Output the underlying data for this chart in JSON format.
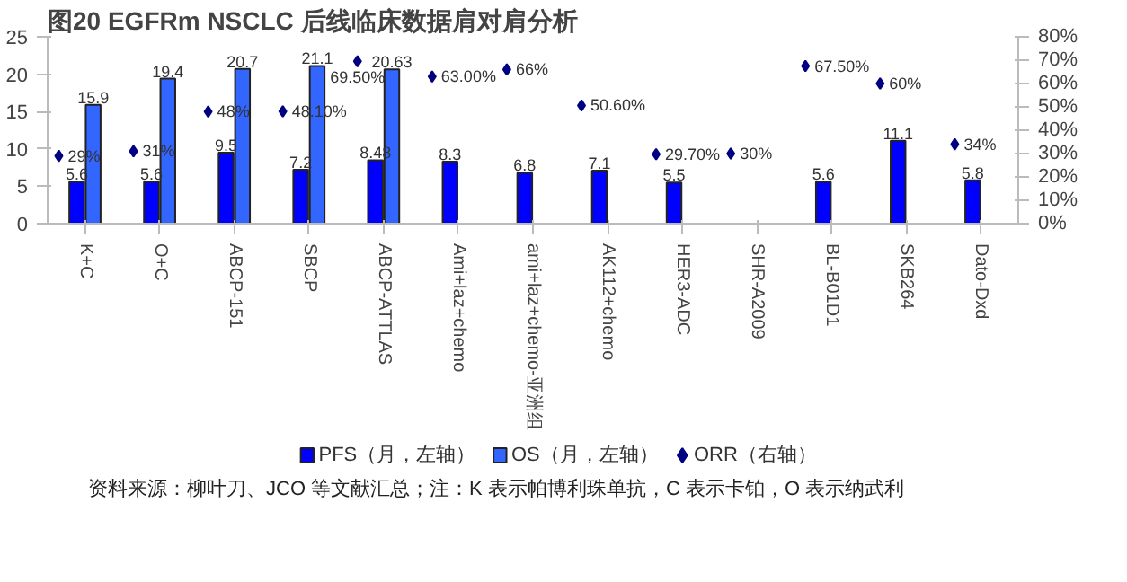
{
  "chart_data": {
    "type": "bar",
    "title": "图20 EGFRm NSCLC 后线临床数据肩对肩分析",
    "categories": [
      "K+C",
      "O+C",
      "ABCP-151",
      "SBCP",
      "ABCP-ATTLAS",
      "Ami+laz+chemo",
      "ami+laz+chemo-亚洲组",
      "AK112+chemo",
      "HER3-ADC",
      "SHR-A2009",
      "BL-B01D1",
      "SKB264",
      "Dato-Dxd"
    ],
    "series": [
      {
        "name": "PFS（月，左轴）",
        "color": "#0000ff",
        "values": [
          5.6,
          5.6,
          9.5,
          7.2,
          8.48,
          8.3,
          6.8,
          7.1,
          5.5,
          null,
          5.6,
          11.1,
          5.8
        ]
      },
      {
        "name": "OS（月，左轴）",
        "color": "#3366ff",
        "values": [
          15.9,
          19.4,
          20.7,
          21.1,
          20.63,
          null,
          null,
          null,
          null,
          null,
          null,
          null,
          null
        ]
      },
      {
        "name": "ORR（右轴）",
        "type": "scatter",
        "axis": "y2",
        "marker": "diamond",
        "color": "#000080",
        "values": [
          29,
          31,
          48,
          48.1,
          69.5,
          63,
          66,
          50.6,
          29.7,
          30,
          67.5,
          60,
          34
        ],
        "value_labels": [
          "29%",
          "31%",
          "48%",
          "48.10%",
          "69.50%",
          "63.00%",
          "66%",
          "50.60%",
          "29.70%",
          "30%",
          "67.50%",
          "60%",
          "34%"
        ]
      }
    ],
    "ylim": [
      0,
      25
    ],
    "yticks": [
      0,
      5,
      10,
      15,
      20,
      25
    ],
    "y2lim": [
      0,
      80
    ],
    "y2ticks": [
      {
        "value": 0,
        "label": "0%"
      },
      {
        "value": 10,
        "label": "10%"
      },
      {
        "value": 20,
        "label": "20%"
      },
      {
        "value": 30,
        "label": "30%"
      },
      {
        "value": 40,
        "label": "40%"
      },
      {
        "value": 50,
        "label": "50%"
      },
      {
        "value": 60,
        "label": "60%"
      },
      {
        "value": 70,
        "label": "70%"
      },
      {
        "value": 80,
        "label": "80%"
      }
    ],
    "data_labels": true,
    "grid": false,
    "legend": "bottom",
    "annotations": [
      "资料来源：柳叶刀、JCO 等文献汇总；注：K 表示帕博利珠单抗，C 表示卡铂，O 表示纳武利"
    ]
  }
}
